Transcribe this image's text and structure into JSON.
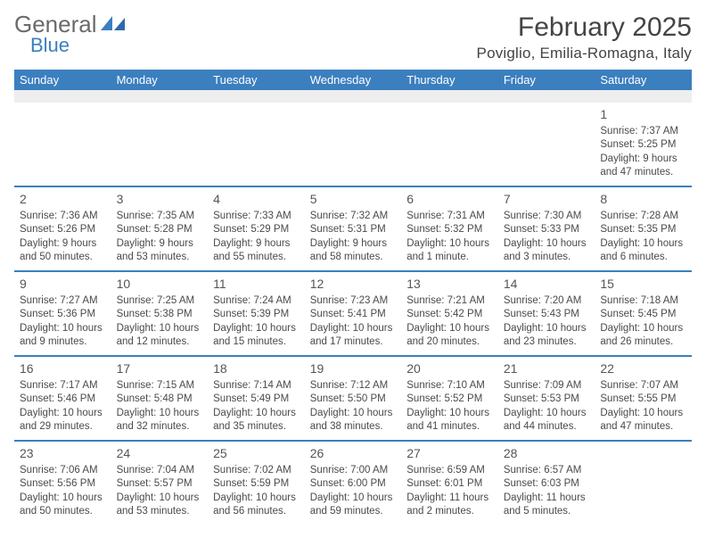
{
  "colors": {
    "brand_blue": "#3b7fbf",
    "header_blue": "#3b7fbf",
    "alt_row_bg": "#eeeeee",
    "divider": "#3b7fbf",
    "text": "#333333",
    "text_light": "#4a4a4a",
    "background": "#ffffff",
    "logo_gray": "#6a6a6a"
  },
  "typography": {
    "title_fontsize": 30,
    "subtitle_fontsize": 17,
    "weekday_fontsize": 13,
    "daynum_fontsize": 14,
    "body_fontsize": 11.5,
    "font_family": "Arial"
  },
  "logo": {
    "text_gray": "General",
    "text_blue": "Blue"
  },
  "header": {
    "title": "February 2025",
    "subtitle": "Poviglio, Emilia-Romagna, Italy"
  },
  "weekdays": [
    "Sunday",
    "Monday",
    "Tuesday",
    "Wednesday",
    "Thursday",
    "Friday",
    "Saturday"
  ],
  "calendar": {
    "type": "table",
    "columns": 7,
    "weeks": [
      [
        null,
        null,
        null,
        null,
        null,
        null,
        {
          "n": "1",
          "sunrise": "7:37 AM",
          "sunset": "5:25 PM",
          "daylight_l1": "Daylight: 9 hours",
          "daylight_l2": "and 47 minutes."
        }
      ],
      [
        {
          "n": "2",
          "sunrise": "7:36 AM",
          "sunset": "5:26 PM",
          "daylight_l1": "Daylight: 9 hours",
          "daylight_l2": "and 50 minutes."
        },
        {
          "n": "3",
          "sunrise": "7:35 AM",
          "sunset": "5:28 PM",
          "daylight_l1": "Daylight: 9 hours",
          "daylight_l2": "and 53 minutes."
        },
        {
          "n": "4",
          "sunrise": "7:33 AM",
          "sunset": "5:29 PM",
          "daylight_l1": "Daylight: 9 hours",
          "daylight_l2": "and 55 minutes."
        },
        {
          "n": "5",
          "sunrise": "7:32 AM",
          "sunset": "5:31 PM",
          "daylight_l1": "Daylight: 9 hours",
          "daylight_l2": "and 58 minutes."
        },
        {
          "n": "6",
          "sunrise": "7:31 AM",
          "sunset": "5:32 PM",
          "daylight_l1": "Daylight: 10 hours",
          "daylight_l2": "and 1 minute."
        },
        {
          "n": "7",
          "sunrise": "7:30 AM",
          "sunset": "5:33 PM",
          "daylight_l1": "Daylight: 10 hours",
          "daylight_l2": "and 3 minutes."
        },
        {
          "n": "8",
          "sunrise": "7:28 AM",
          "sunset": "5:35 PM",
          "daylight_l1": "Daylight: 10 hours",
          "daylight_l2": "and 6 minutes."
        }
      ],
      [
        {
          "n": "9",
          "sunrise": "7:27 AM",
          "sunset": "5:36 PM",
          "daylight_l1": "Daylight: 10 hours",
          "daylight_l2": "and 9 minutes."
        },
        {
          "n": "10",
          "sunrise": "7:25 AM",
          "sunset": "5:38 PM",
          "daylight_l1": "Daylight: 10 hours",
          "daylight_l2": "and 12 minutes."
        },
        {
          "n": "11",
          "sunrise": "7:24 AM",
          "sunset": "5:39 PM",
          "daylight_l1": "Daylight: 10 hours",
          "daylight_l2": "and 15 minutes."
        },
        {
          "n": "12",
          "sunrise": "7:23 AM",
          "sunset": "5:41 PM",
          "daylight_l1": "Daylight: 10 hours",
          "daylight_l2": "and 17 minutes."
        },
        {
          "n": "13",
          "sunrise": "7:21 AM",
          "sunset": "5:42 PM",
          "daylight_l1": "Daylight: 10 hours",
          "daylight_l2": "and 20 minutes."
        },
        {
          "n": "14",
          "sunrise": "7:20 AM",
          "sunset": "5:43 PM",
          "daylight_l1": "Daylight: 10 hours",
          "daylight_l2": "and 23 minutes."
        },
        {
          "n": "15",
          "sunrise": "7:18 AM",
          "sunset": "5:45 PM",
          "daylight_l1": "Daylight: 10 hours",
          "daylight_l2": "and 26 minutes."
        }
      ],
      [
        {
          "n": "16",
          "sunrise": "7:17 AM",
          "sunset": "5:46 PM",
          "daylight_l1": "Daylight: 10 hours",
          "daylight_l2": "and 29 minutes."
        },
        {
          "n": "17",
          "sunrise": "7:15 AM",
          "sunset": "5:48 PM",
          "daylight_l1": "Daylight: 10 hours",
          "daylight_l2": "and 32 minutes."
        },
        {
          "n": "18",
          "sunrise": "7:14 AM",
          "sunset": "5:49 PM",
          "daylight_l1": "Daylight: 10 hours",
          "daylight_l2": "and 35 minutes."
        },
        {
          "n": "19",
          "sunrise": "7:12 AM",
          "sunset": "5:50 PM",
          "daylight_l1": "Daylight: 10 hours",
          "daylight_l2": "and 38 minutes."
        },
        {
          "n": "20",
          "sunrise": "7:10 AM",
          "sunset": "5:52 PM",
          "daylight_l1": "Daylight: 10 hours",
          "daylight_l2": "and 41 minutes."
        },
        {
          "n": "21",
          "sunrise": "7:09 AM",
          "sunset": "5:53 PM",
          "daylight_l1": "Daylight: 10 hours",
          "daylight_l2": "and 44 minutes."
        },
        {
          "n": "22",
          "sunrise": "7:07 AM",
          "sunset": "5:55 PM",
          "daylight_l1": "Daylight: 10 hours",
          "daylight_l2": "and 47 minutes."
        }
      ],
      [
        {
          "n": "23",
          "sunrise": "7:06 AM",
          "sunset": "5:56 PM",
          "daylight_l1": "Daylight: 10 hours",
          "daylight_l2": "and 50 minutes."
        },
        {
          "n": "24",
          "sunrise": "7:04 AM",
          "sunset": "5:57 PM",
          "daylight_l1": "Daylight: 10 hours",
          "daylight_l2": "and 53 minutes."
        },
        {
          "n": "25",
          "sunrise": "7:02 AM",
          "sunset": "5:59 PM",
          "daylight_l1": "Daylight: 10 hours",
          "daylight_l2": "and 56 minutes."
        },
        {
          "n": "26",
          "sunrise": "7:00 AM",
          "sunset": "6:00 PM",
          "daylight_l1": "Daylight: 10 hours",
          "daylight_l2": "and 59 minutes."
        },
        {
          "n": "27",
          "sunrise": "6:59 AM",
          "sunset": "6:01 PM",
          "daylight_l1": "Daylight: 11 hours",
          "daylight_l2": "and 2 minutes."
        },
        {
          "n": "28",
          "sunrise": "6:57 AM",
          "sunset": "6:03 PM",
          "daylight_l1": "Daylight: 11 hours",
          "daylight_l2": "and 5 minutes."
        },
        null
      ]
    ]
  },
  "labels": {
    "sunrise_prefix": "Sunrise: ",
    "sunset_prefix": "Sunset: "
  }
}
